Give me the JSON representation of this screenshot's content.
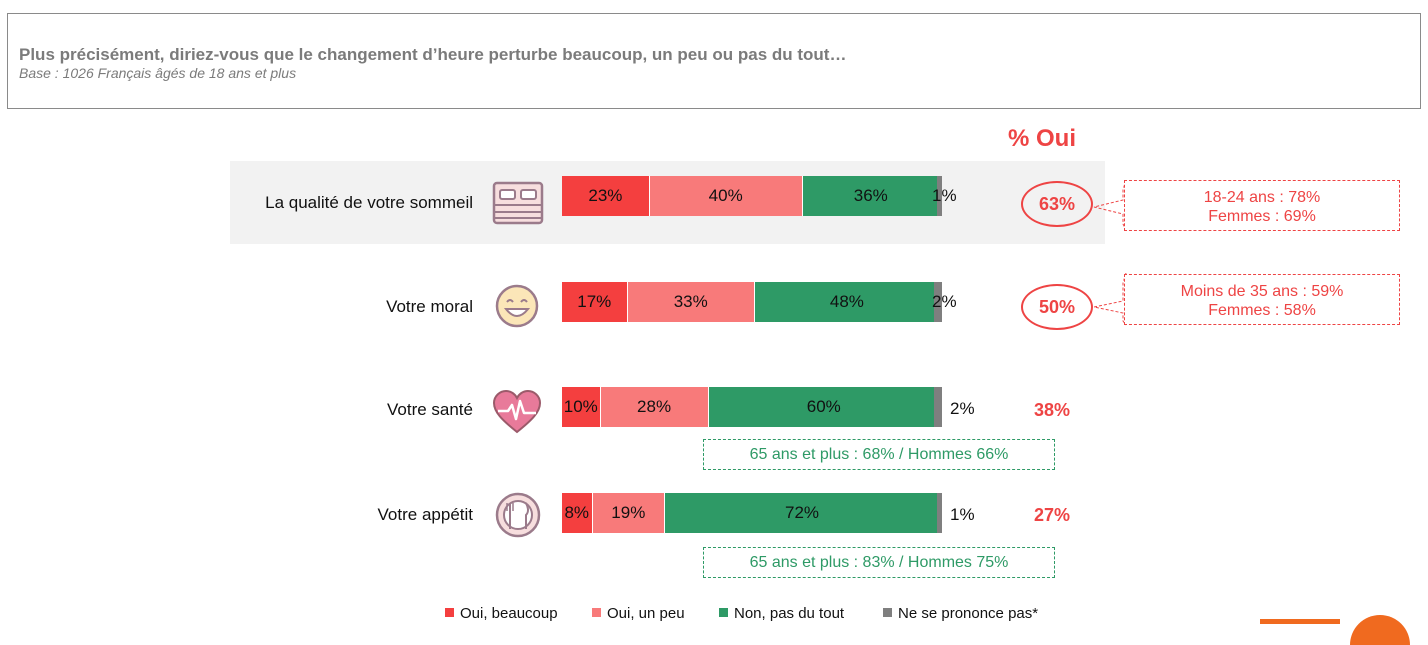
{
  "header": {
    "title": "Plus précisément, diriez-vous que le changement d’heure perturbe beaucoup, un peu ou pas du tout…",
    "base": "Base : 1026 Français âgés de 18 ans et plus"
  },
  "oui_header": "% Oui",
  "colors": {
    "oui_beaucoup": "#f43f3f",
    "oui_un_peu": "#f87a7a",
    "non_pas_du_tout": "#2e9a66",
    "ne_se_prononce_pas": "#7f7f7f",
    "accent_red": "#ee4444",
    "accent_green": "#2e9a66"
  },
  "chart_data": {
    "type": "bar",
    "orientation": "horizontal-stacked",
    "categories": [
      "La qualité de votre sommeil",
      "Votre moral",
      "Votre santé",
      "Votre appétit"
    ],
    "series": [
      {
        "name": "Oui, beaucoup",
        "values": [
          23,
          17,
          10,
          8
        ]
      },
      {
        "name": "Oui, un peu",
        "values": [
          40,
          33,
          28,
          19
        ]
      },
      {
        "name": "Non, pas du tout",
        "values": [
          36,
          48,
          60,
          72
        ]
      },
      {
        "name": "Ne se prononce pas*",
        "values": [
          1,
          2,
          2,
          1
        ]
      }
    ],
    "series_labels": [
      [
        "23%",
        "40%",
        "36%",
        "1%"
      ],
      [
        "17%",
        "33%",
        "48%",
        "2%"
      ],
      [
        "10%",
        "28%",
        "60%",
        "2%"
      ],
      [
        "8%",
        "19%",
        "72%",
        "1%"
      ]
    ],
    "oui_total": [
      "63%",
      "50%",
      "38%",
      "27%"
    ],
    "xlim": [
      0,
      100
    ],
    "legend_position": "bottom",
    "grid": false
  },
  "rows": [
    {
      "label": "La qualité de votre sommeil",
      "icon": "bed-icon"
    },
    {
      "label": "Votre moral",
      "icon": "smiley-icon"
    },
    {
      "label": "Votre santé",
      "icon": "heart-pulse-icon"
    },
    {
      "label": "Votre appétit",
      "icon": "plate-cutlery-icon"
    }
  ],
  "callouts": {
    "sommeil": {
      "line1": "18-24 ans : 78%",
      "line2": "Femmes : 69%"
    },
    "moral": {
      "line1": "Moins de 35 ans : 59%",
      "line2": "Femmes : 58%"
    },
    "sante": "65 ans et plus : 68% / Hommes 66%",
    "appetit": "65 ans et plus : 83% / Hommes 75%"
  },
  "legend": {
    "oui_beaucoup": "Oui, beaucoup",
    "oui_un_peu": "Oui, un peu",
    "non_pas_du_tout": "Non, pas du tout",
    "ne_se_prononce_pas": "Ne se prononce pas*"
  }
}
